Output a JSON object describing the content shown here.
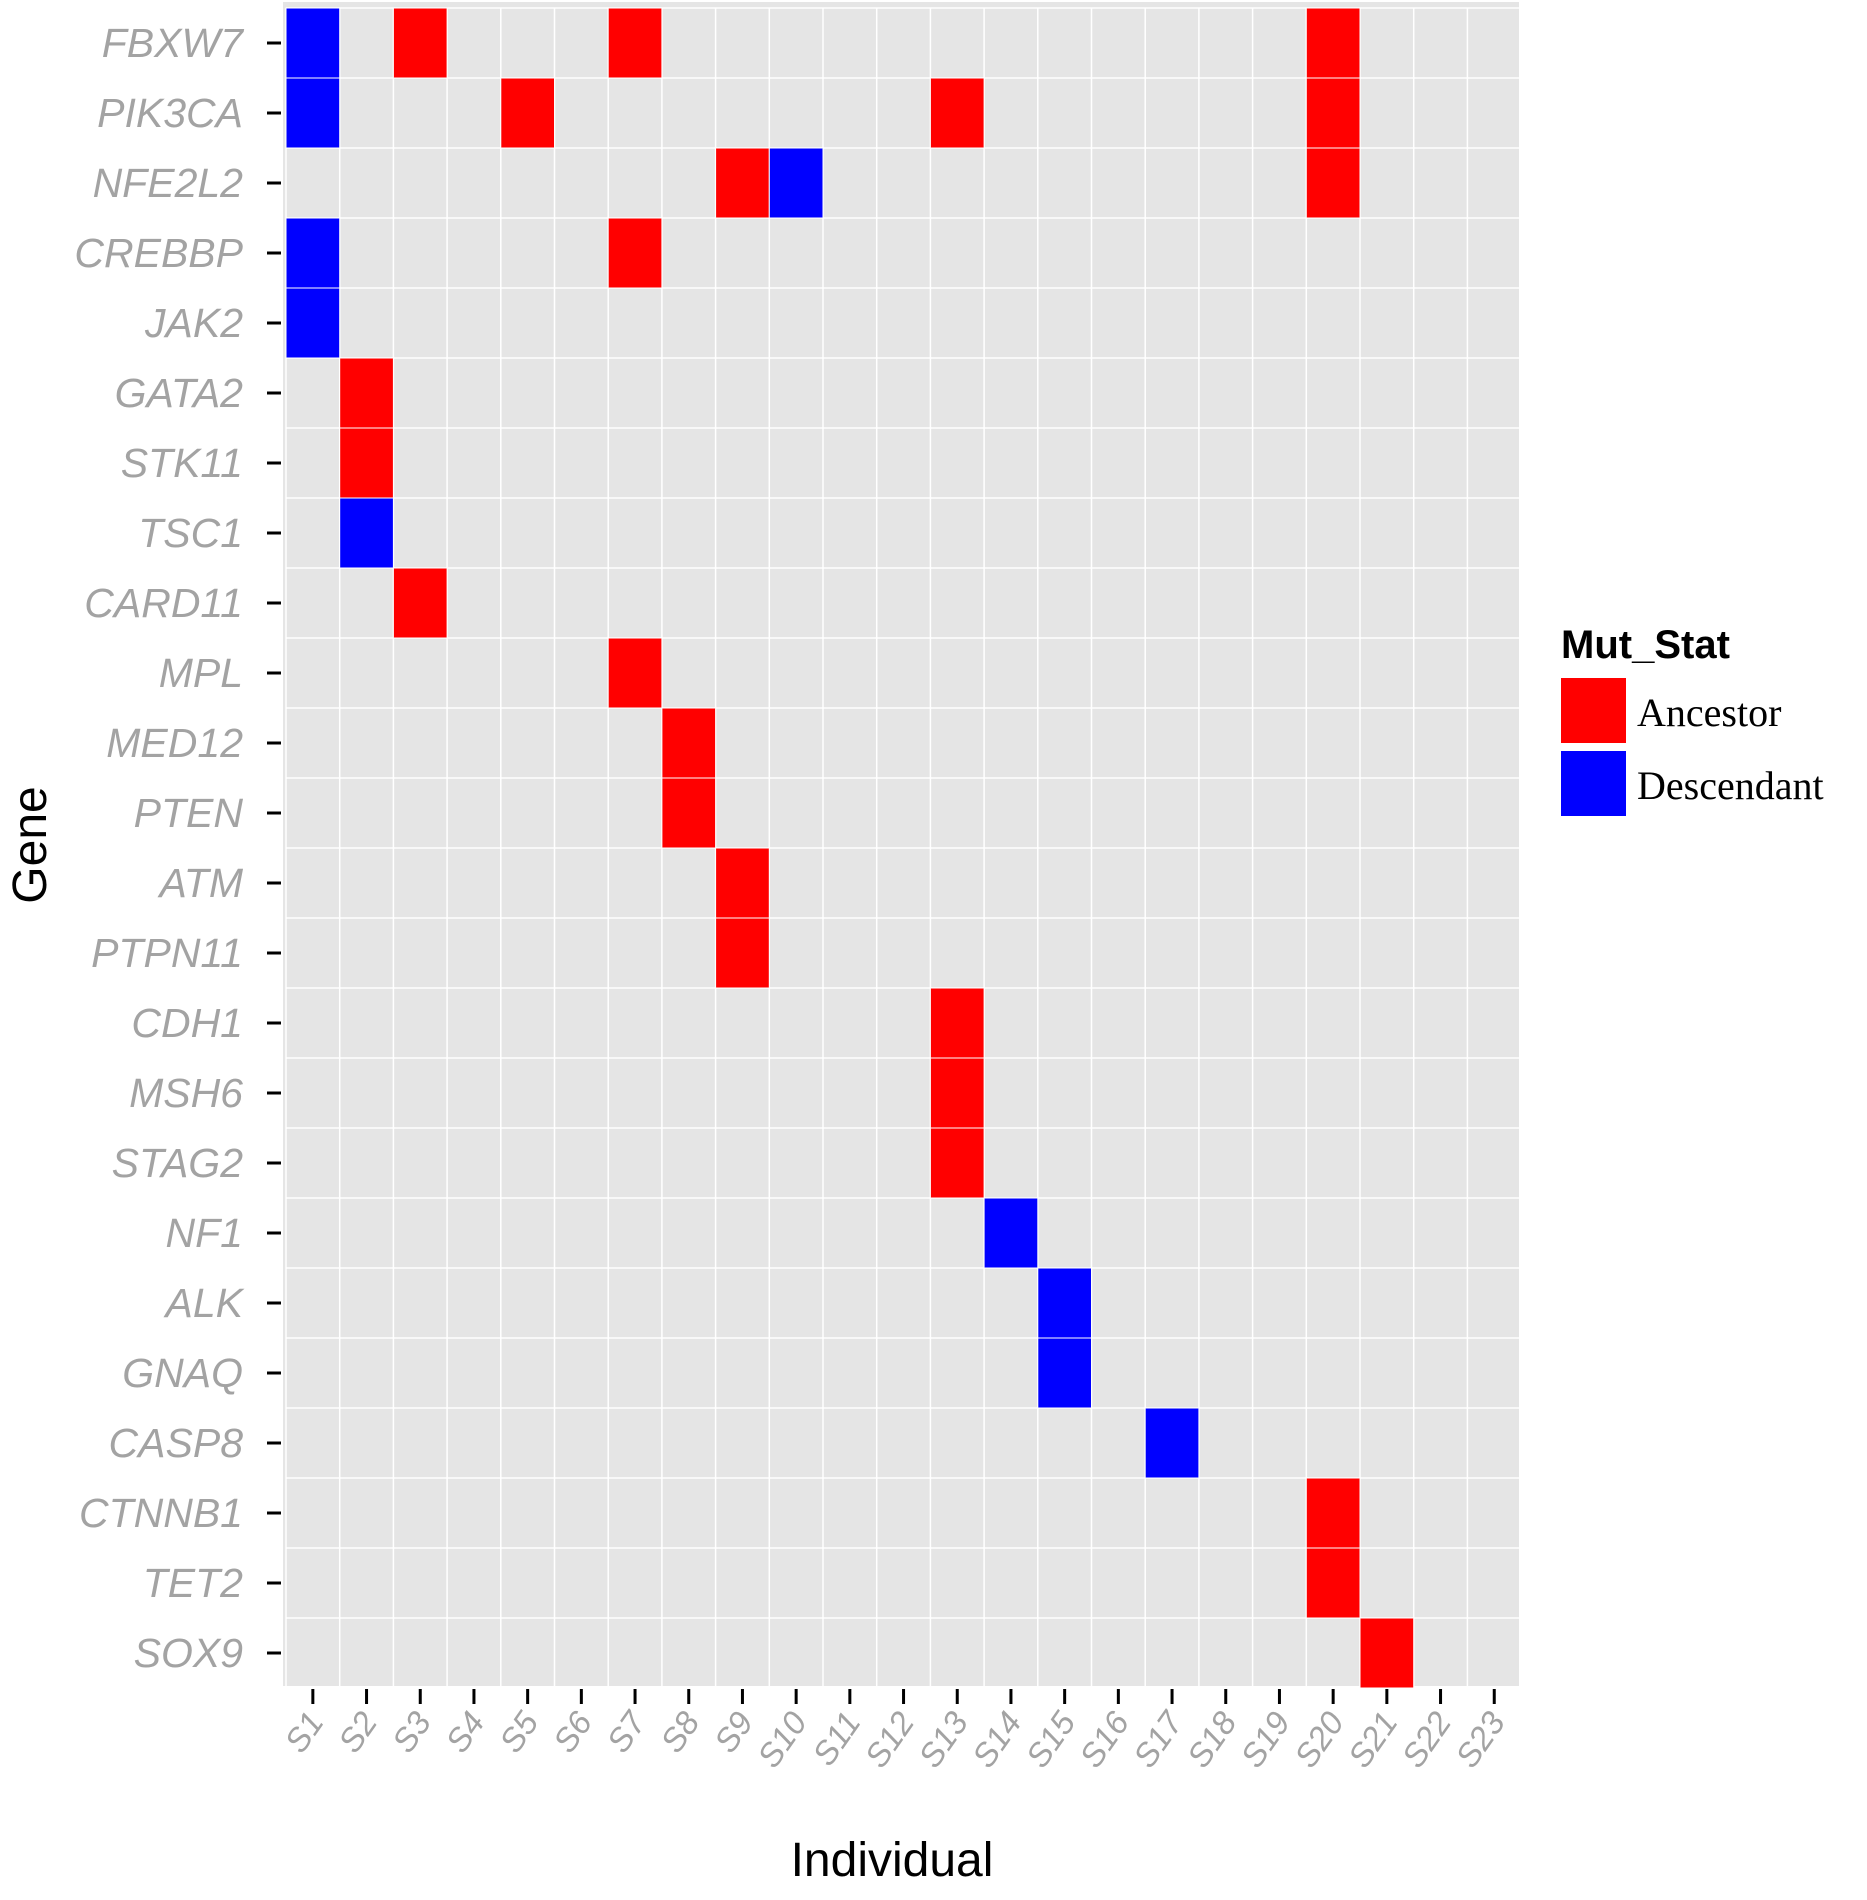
{
  "chart_data": {
    "type": "heatmap",
    "xlabel": "Individual",
    "ylabel": "Gene",
    "x_categories": [
      "S1",
      "S2",
      "S3",
      "S4",
      "S5",
      "S6",
      "S7",
      "S8",
      "S9",
      "S10",
      "S11",
      "S12",
      "S13",
      "S14",
      "S15",
      "S16",
      "S17",
      "S18",
      "S19",
      "S20",
      "S21",
      "S22",
      "S23"
    ],
    "y_categories": [
      "FBXW7",
      "PIK3CA",
      "NFE2L2",
      "CREBBP",
      "JAK2",
      "GATA2",
      "STK11",
      "TSC1",
      "CARD11",
      "MPL",
      "MED12",
      "PTEN",
      "ATM",
      "PTPN11",
      "CDH1",
      "MSH6",
      "STAG2",
      "NF1",
      "ALK",
      "GNAQ",
      "CASP8",
      "CTNNB1",
      "TET2",
      "SOX9"
    ],
    "legend": {
      "title": "Mut_Stat",
      "placement": "right",
      "entries": [
        {
          "label": "Ancestor",
          "color": "#ff0000"
        },
        {
          "label": "Descendant",
          "color": "#0000ff"
        }
      ]
    },
    "background_color": "#e5e5e5",
    "grid": true,
    "cells": [
      {
        "gene": "FBXW7",
        "individual": "S1",
        "status": "Descendant"
      },
      {
        "gene": "FBXW7",
        "individual": "S3",
        "status": "Ancestor"
      },
      {
        "gene": "FBXW7",
        "individual": "S7",
        "status": "Ancestor"
      },
      {
        "gene": "FBXW7",
        "individual": "S20",
        "status": "Ancestor"
      },
      {
        "gene": "PIK3CA",
        "individual": "S1",
        "status": "Descendant"
      },
      {
        "gene": "PIK3CA",
        "individual": "S5",
        "status": "Ancestor"
      },
      {
        "gene": "PIK3CA",
        "individual": "S13",
        "status": "Ancestor"
      },
      {
        "gene": "PIK3CA",
        "individual": "S20",
        "status": "Ancestor"
      },
      {
        "gene": "NFE2L2",
        "individual": "S9",
        "status": "Ancestor"
      },
      {
        "gene": "NFE2L2",
        "individual": "S10",
        "status": "Descendant"
      },
      {
        "gene": "NFE2L2",
        "individual": "S20",
        "status": "Ancestor"
      },
      {
        "gene": "CREBBP",
        "individual": "S1",
        "status": "Descendant"
      },
      {
        "gene": "CREBBP",
        "individual": "S7",
        "status": "Ancestor"
      },
      {
        "gene": "JAK2",
        "individual": "S1",
        "status": "Descendant"
      },
      {
        "gene": "GATA2",
        "individual": "S2",
        "status": "Ancestor"
      },
      {
        "gene": "STK11",
        "individual": "S2",
        "status": "Ancestor"
      },
      {
        "gene": "TSC1",
        "individual": "S2",
        "status": "Descendant"
      },
      {
        "gene": "CARD11",
        "individual": "S3",
        "status": "Ancestor"
      },
      {
        "gene": "MPL",
        "individual": "S7",
        "status": "Ancestor"
      },
      {
        "gene": "MED12",
        "individual": "S8",
        "status": "Ancestor"
      },
      {
        "gene": "PTEN",
        "individual": "S8",
        "status": "Ancestor"
      },
      {
        "gene": "ATM",
        "individual": "S9",
        "status": "Ancestor"
      },
      {
        "gene": "PTPN11",
        "individual": "S9",
        "status": "Ancestor"
      },
      {
        "gene": "CDH1",
        "individual": "S13",
        "status": "Ancestor"
      },
      {
        "gene": "MSH6",
        "individual": "S13",
        "status": "Ancestor"
      },
      {
        "gene": "STAG2",
        "individual": "S13",
        "status": "Ancestor"
      },
      {
        "gene": "NF1",
        "individual": "S14",
        "status": "Descendant"
      },
      {
        "gene": "ALK",
        "individual": "S15",
        "status": "Descendant"
      },
      {
        "gene": "GNAQ",
        "individual": "S15",
        "status": "Descendant"
      },
      {
        "gene": "CASP8",
        "individual": "S17",
        "status": "Descendant"
      },
      {
        "gene": "CTNNB1",
        "individual": "S20",
        "status": "Ancestor"
      },
      {
        "gene": "TET2",
        "individual": "S20",
        "status": "Ancestor"
      },
      {
        "gene": "SOX9",
        "individual": "S21",
        "status": "Ancestor"
      }
    ]
  }
}
